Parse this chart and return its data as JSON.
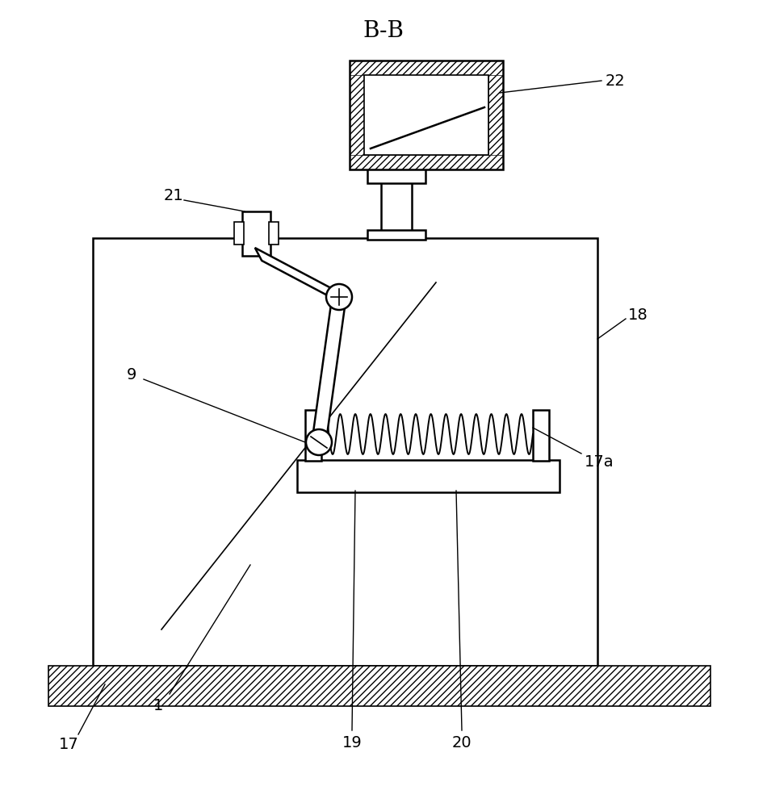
{
  "title": "B-B",
  "bg_color": "#ffffff",
  "line_color": "#000000",
  "figsize": [
    9.5,
    10.0
  ],
  "dpi": 100,
  "label_fontsize": 14,
  "title_fontsize": 20
}
